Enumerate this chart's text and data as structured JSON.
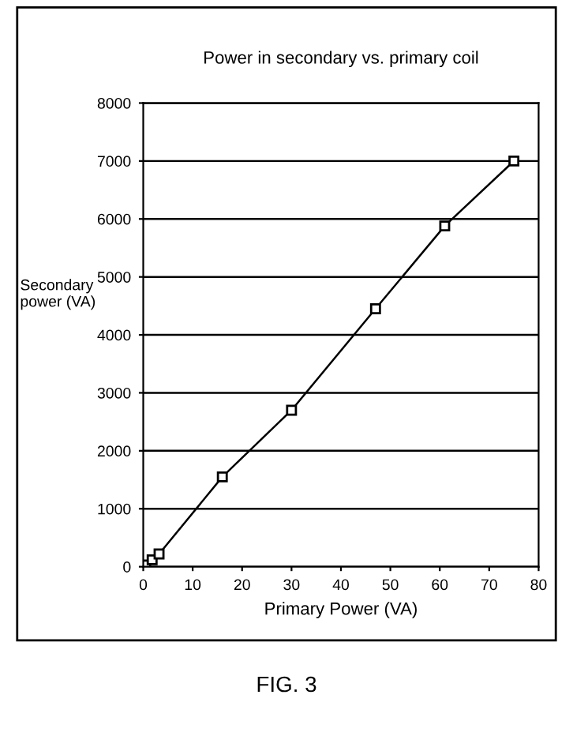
{
  "chart_data": {
    "type": "line",
    "title": "Power in secondary vs. primary coil",
    "xlabel": "Primary Power (VA)",
    "ylabel": "Secondary\npower (VA)",
    "x": [
      0.5,
      1.8,
      3.2,
      16,
      30,
      47,
      61,
      75
    ],
    "series": [
      {
        "color": "#000000",
        "values": [
          30,
          120,
          220,
          1550,
          2700,
          4450,
          5880,
          7000
        ]
      }
    ],
    "xlim": [
      0,
      80
    ],
    "xticks": [
      0,
      10,
      20,
      30,
      40,
      50,
      60,
      70,
      80
    ],
    "ylim": [
      0,
      8000
    ],
    "yticks": [
      0,
      1000,
      2000,
      3000,
      4000,
      5000,
      6000,
      7000,
      8000
    ],
    "grid": "y",
    "marker": "square",
    "line_style": "solid",
    "legend": false,
    "annotations": [
      "FIG. 3"
    ]
  }
}
